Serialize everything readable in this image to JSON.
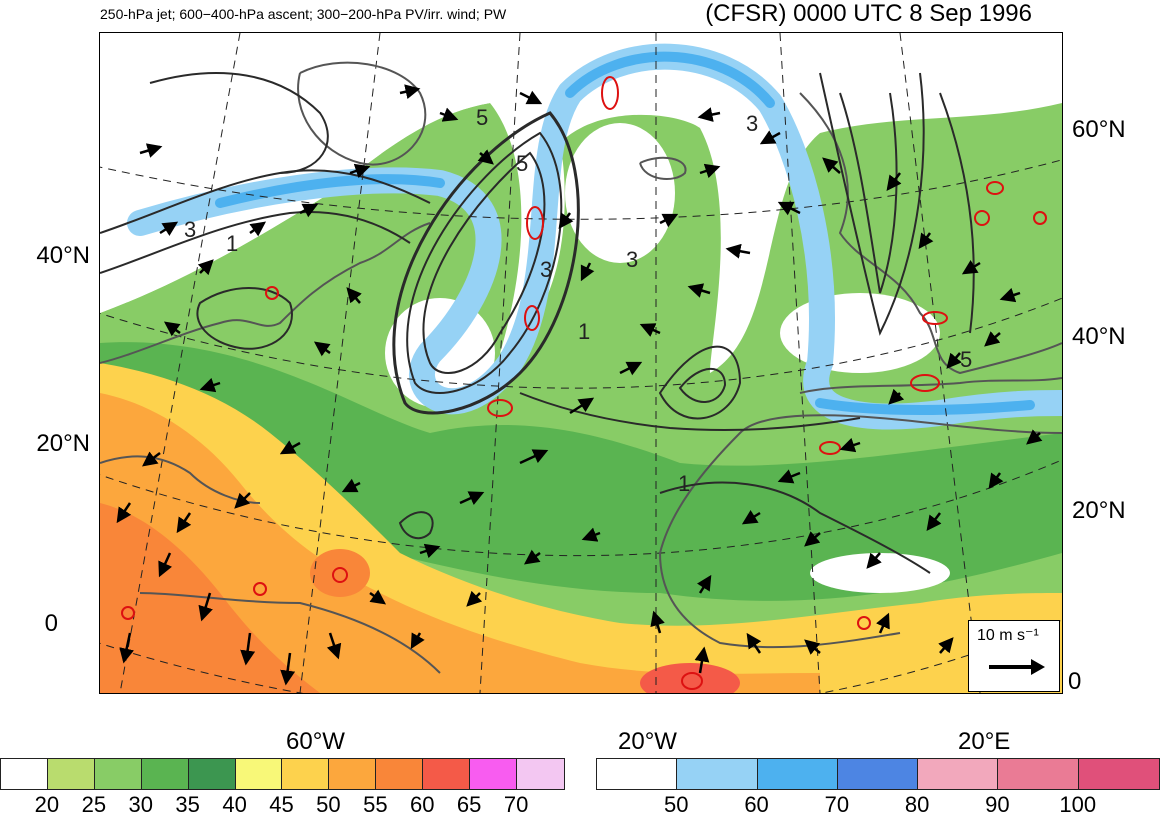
{
  "header": {
    "subtitle": "250-hPa jet; 600−400-hPa ascent; 300−200-hPa PV/irr. wind; PW",
    "title": "(CFSR) 0000 UTC 8 Sep 1996"
  },
  "map": {
    "lat_labels_left": [
      "40°N",
      "20°N",
      "0"
    ],
    "lat_labels_right": [
      "60°N",
      "40°N",
      "20°N",
      "0"
    ],
    "lon_labels_bottom": [
      "60°W",
      "20°W",
      "20°E"
    ],
    "contour_labels": [
      "3",
      "1",
      "5",
      "5",
      "3",
      "3",
      "1",
      "5",
      "3",
      "1"
    ],
    "colors": {
      "coast": "#555555",
      "pv_contour": "#2a2a2a",
      "ascent_contour": "#dd1111",
      "wind_vector": "#000000"
    }
  },
  "reference_vector": {
    "label": "10 m s⁻¹"
  },
  "colorbar_pw": {
    "colors": [
      "#ffffff",
      "#b9dc6e",
      "#88cc66",
      "#5ab451",
      "#3c9650",
      "#f8f878",
      "#fdd24d",
      "#fca73d",
      "#f98639",
      "#f45a48",
      "#f85cf0",
      "#f3c7f2"
    ],
    "labels": [
      "20",
      "25",
      "30",
      "35",
      "40",
      "45",
      "50",
      "55",
      "60",
      "65",
      "70"
    ]
  },
  "colorbar_jet": {
    "colors": [
      "#ffffff",
      "#96d2f5",
      "#4db1ef",
      "#4d85e3",
      "#f2a8bc",
      "#ea7b95",
      "#e0507a"
    ],
    "labels": [
      "50",
      "60",
      "70",
      "80",
      "90",
      "100"
    ]
  }
}
